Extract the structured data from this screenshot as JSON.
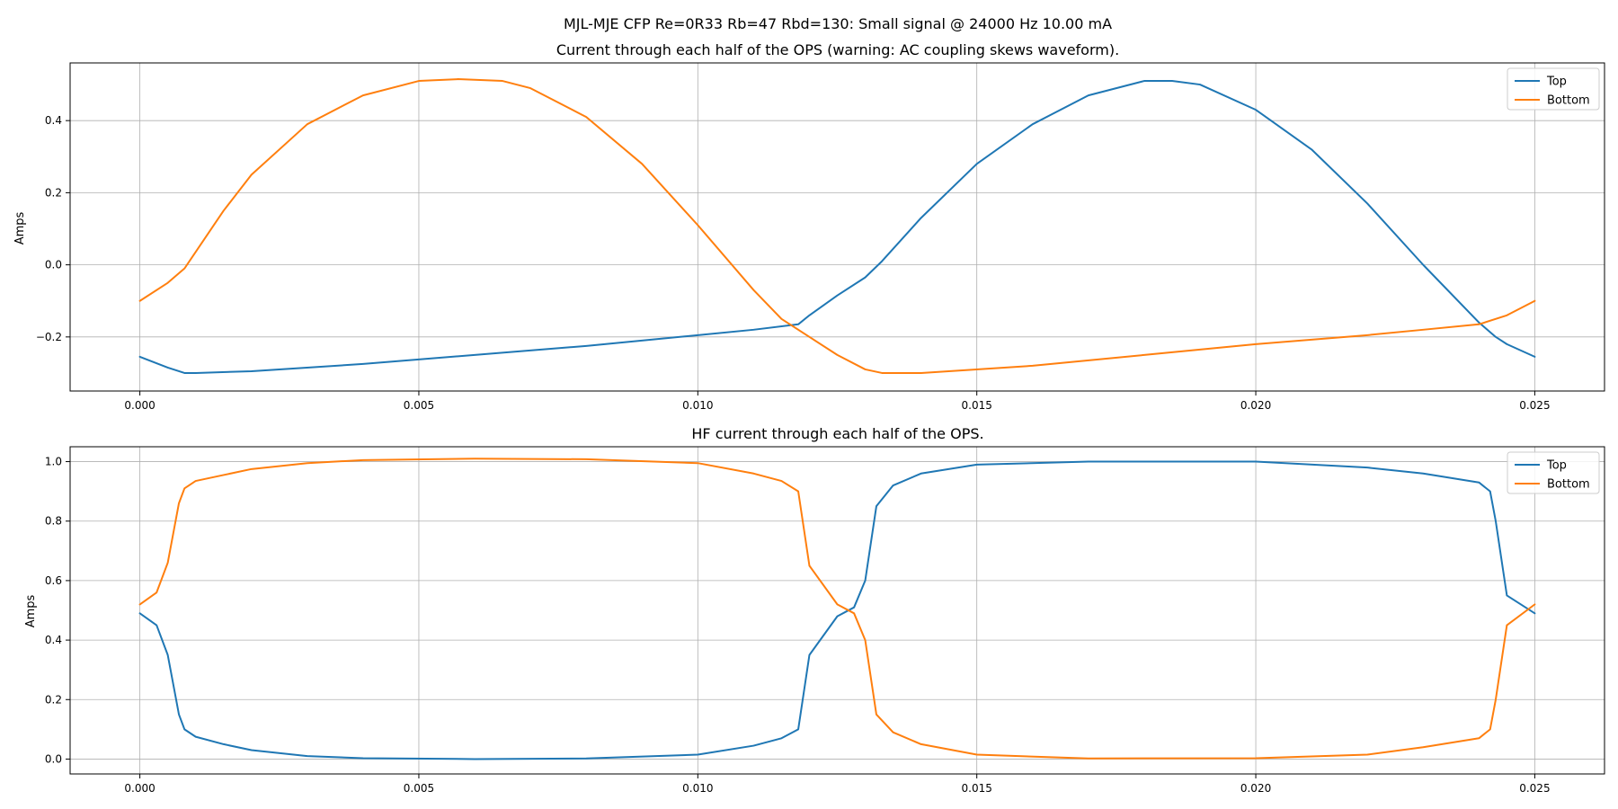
{
  "figure": {
    "suptitle": "MJL-MJE CFP Re=0R33 Rb=47 Rbd=130: Small signal @ 24000 Hz 10.00 mA"
  },
  "colors": {
    "top": "#1f77b4",
    "bottom": "#ff7f0e",
    "grid": "#b0b0b0",
    "axis": "#000000"
  },
  "chart_data": [
    {
      "type": "line",
      "title": "Current through each half of the OPS (warning: AC coupling skews waveform).",
      "ylabel": "Amps",
      "xlim": [
        -0.00125,
        0.02625
      ],
      "ylim": [
        -0.35,
        0.56
      ],
      "xticks": [
        0.0,
        0.005,
        0.01,
        0.015,
        0.02,
        0.025
      ],
      "xtick_labels": [
        "0.000",
        "0.005",
        "0.010",
        "0.015",
        "0.020",
        "0.025"
      ],
      "yticks": [
        -0.2,
        0.0,
        0.2,
        0.4
      ],
      "ytick_labels": [
        "−0.2",
        "0.0",
        "0.2",
        "0.4"
      ],
      "grid": true,
      "legend_position": "top-right",
      "series": [
        {
          "name": "Top",
          "color": "#1f77b4",
          "x": [
            0.0,
            0.0005,
            0.0008,
            0.001,
            0.002,
            0.004,
            0.006,
            0.008,
            0.01,
            0.011,
            0.0118,
            0.012,
            0.0125,
            0.013,
            0.0133,
            0.014,
            0.015,
            0.016,
            0.017,
            0.018,
            0.0185,
            0.019,
            0.02,
            0.021,
            0.022,
            0.023,
            0.024,
            0.0243,
            0.0245,
            0.025
          ],
          "values": [
            -0.255,
            -0.285,
            -0.3,
            -0.3,
            -0.295,
            -0.275,
            -0.25,
            -0.225,
            -0.195,
            -0.18,
            -0.165,
            -0.14,
            -0.085,
            -0.035,
            0.01,
            0.13,
            0.28,
            0.39,
            0.47,
            0.51,
            0.51,
            0.5,
            0.43,
            0.32,
            0.17,
            0.0,
            -0.16,
            -0.2,
            -0.22,
            -0.255
          ]
        },
        {
          "name": "Bottom",
          "color": "#ff7f0e",
          "x": [
            0.0,
            0.0005,
            0.0008,
            0.0015,
            0.002,
            0.003,
            0.004,
            0.005,
            0.0057,
            0.0065,
            0.007,
            0.008,
            0.009,
            0.01,
            0.011,
            0.0115,
            0.012,
            0.0125,
            0.013,
            0.0133,
            0.014,
            0.016,
            0.018,
            0.02,
            0.022,
            0.023,
            0.024,
            0.0245,
            0.025
          ],
          "values": [
            -0.1,
            -0.05,
            -0.01,
            0.15,
            0.25,
            0.39,
            0.47,
            0.51,
            0.515,
            0.51,
            0.49,
            0.41,
            0.28,
            0.11,
            -0.07,
            -0.15,
            -0.2,
            -0.25,
            -0.29,
            -0.3,
            -0.3,
            -0.28,
            -0.25,
            -0.22,
            -0.195,
            -0.18,
            -0.165,
            -0.14,
            -0.1
          ]
        }
      ]
    },
    {
      "type": "line",
      "title": "HF current through each half of the OPS.",
      "ylabel": "Amps",
      "xlim": [
        -0.00125,
        0.02625
      ],
      "ylim": [
        -0.05,
        1.05
      ],
      "xticks": [
        0.0,
        0.005,
        0.01,
        0.015,
        0.02,
        0.025
      ],
      "xtick_labels": [
        "0.000",
        "0.005",
        "0.010",
        "0.015",
        "0.020",
        "0.025"
      ],
      "yticks": [
        0.0,
        0.2,
        0.4,
        0.6,
        0.8,
        1.0
      ],
      "ytick_labels": [
        "0.0",
        "0.2",
        "0.4",
        "0.6",
        "0.8",
        "1.0"
      ],
      "grid": true,
      "legend_position": "top-right",
      "series": [
        {
          "name": "Top",
          "color": "#1f77b4",
          "x": [
            0.0,
            0.0003,
            0.0005,
            0.0007,
            0.0008,
            0.001,
            0.0015,
            0.002,
            0.003,
            0.004,
            0.006,
            0.008,
            0.01,
            0.011,
            0.0115,
            0.0118,
            0.012,
            0.0125,
            0.0128,
            0.013,
            0.0132,
            0.0135,
            0.014,
            0.015,
            0.017,
            0.02,
            0.022,
            0.023,
            0.024,
            0.0242,
            0.0243,
            0.0245,
            0.025
          ],
          "values": [
            0.49,
            0.45,
            0.35,
            0.15,
            0.1,
            0.075,
            0.05,
            0.03,
            0.01,
            0.003,
            0.0,
            0.002,
            0.015,
            0.045,
            0.07,
            0.1,
            0.35,
            0.48,
            0.51,
            0.6,
            0.85,
            0.92,
            0.96,
            0.99,
            1.0,
            1.0,
            0.98,
            0.96,
            0.93,
            0.9,
            0.8,
            0.55,
            0.49
          ]
        },
        {
          "name": "Bottom",
          "color": "#ff7f0e",
          "x": [
            0.0,
            0.0003,
            0.0005,
            0.0007,
            0.0008,
            0.001,
            0.0015,
            0.002,
            0.003,
            0.004,
            0.006,
            0.008,
            0.01,
            0.011,
            0.0115,
            0.0118,
            0.012,
            0.0125,
            0.0128,
            0.013,
            0.0132,
            0.0135,
            0.014,
            0.015,
            0.017,
            0.02,
            0.022,
            0.023,
            0.024,
            0.0242,
            0.0243,
            0.0245,
            0.025
          ],
          "values": [
            0.52,
            0.56,
            0.66,
            0.86,
            0.91,
            0.935,
            0.955,
            0.975,
            0.995,
            1.005,
            1.01,
            1.008,
            0.995,
            0.96,
            0.935,
            0.9,
            0.65,
            0.52,
            0.49,
            0.4,
            0.15,
            0.09,
            0.05,
            0.015,
            0.002,
            0.003,
            0.015,
            0.04,
            0.07,
            0.1,
            0.2,
            0.45,
            0.52
          ]
        }
      ]
    }
  ]
}
